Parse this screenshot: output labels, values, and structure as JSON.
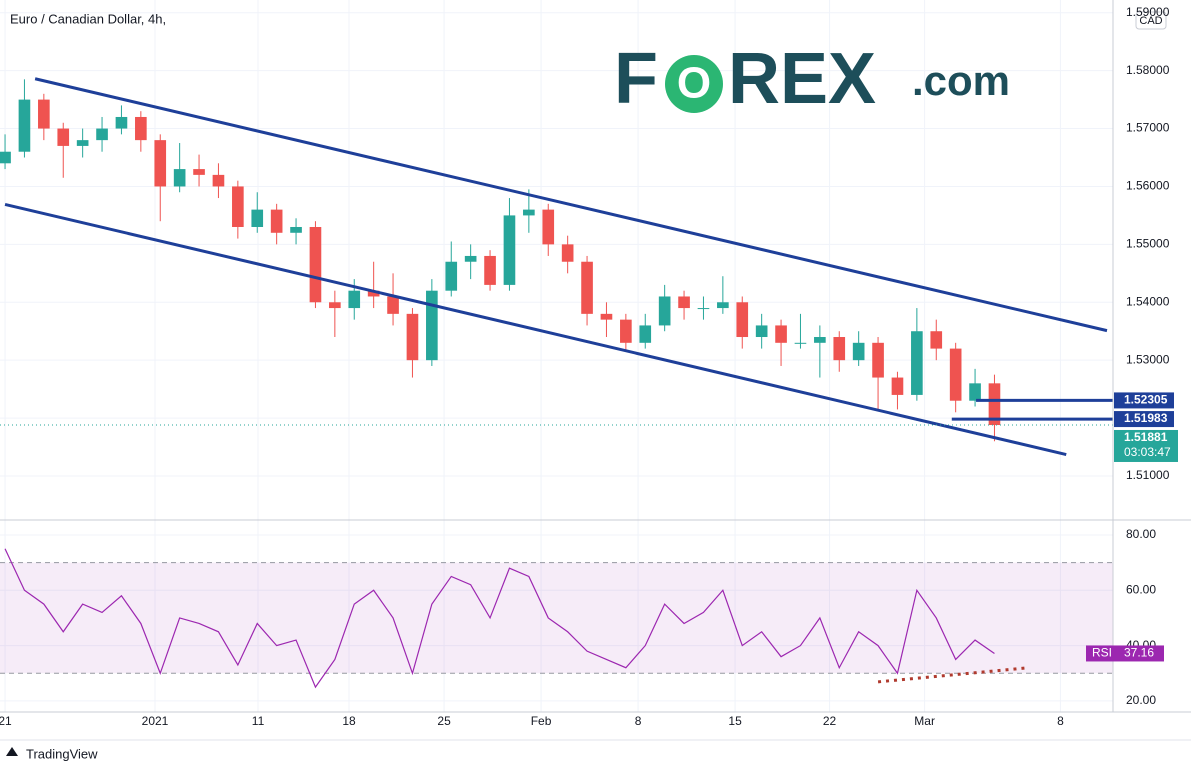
{
  "chart_data": {
    "type": "candlestick",
    "title": "Euro / Canadian Dollar, 4h,",
    "currency": "CAD",
    "logo": [
      "F",
      "O",
      "REX",
      ".com"
    ],
    "footer": "TradingView",
    "up_color": "#26a69a",
    "down_color": "#ef5350",
    "grid": true,
    "xlim": [
      -0.26,
      57.11
    ],
    "ylim": [
      1.5024,
      1.5922
    ],
    "xticks": [
      {
        "value": 0,
        "label": "21"
      },
      {
        "value": 7.73,
        "label": "2021"
      },
      {
        "value": 13.04,
        "label": "11"
      },
      {
        "value": 17.73,
        "label": "18"
      },
      {
        "value": 22.63,
        "label": "25"
      },
      {
        "value": 27.63,
        "label": "Feb"
      },
      {
        "value": 32.63,
        "label": "8"
      },
      {
        "value": 37.63,
        "label": "15"
      },
      {
        "value": 42.5,
        "label": "22"
      },
      {
        "value": 47.4,
        "label": "Mar"
      },
      {
        "value": 54.4,
        "label": "8"
      }
    ],
    "yticks": [
      {
        "value": 1.51,
        "label": "1.51000"
      },
      {
        "value": 1.52,
        "label": "1.52000"
      },
      {
        "value": 1.53,
        "label": "1.53000"
      },
      {
        "value": 1.54,
        "label": "1.54000"
      },
      {
        "value": 1.55,
        "label": "1.55000"
      },
      {
        "value": 1.56,
        "label": "1.56000"
      },
      {
        "value": 1.57,
        "label": "1.57000"
      },
      {
        "value": 1.58,
        "label": "1.58000"
      },
      {
        "value": 1.59,
        "label": "1.59000"
      }
    ],
    "x": [
      0,
      1,
      2,
      3,
      4,
      5,
      6,
      7,
      8,
      9,
      10,
      11,
      12,
      13,
      14,
      15,
      16,
      17,
      18,
      19,
      20,
      21,
      22,
      23,
      24,
      25,
      26,
      27,
      28,
      29,
      30,
      31,
      32,
      33,
      34,
      35,
      36,
      37,
      38,
      39,
      40,
      41,
      42,
      43,
      44,
      45,
      46,
      47,
      48,
      49,
      50,
      51
    ],
    "candles": [
      [
        1.564,
        1.569,
        1.563,
        1.566
      ],
      [
        1.566,
        1.5785,
        1.565,
        1.575
      ],
      [
        1.575,
        1.576,
        1.568,
        1.57
      ],
      [
        1.57,
        1.571,
        1.5615,
        1.567
      ],
      [
        1.567,
        1.57,
        1.565,
        1.568
      ],
      [
        1.568,
        1.572,
        1.566,
        1.57
      ],
      [
        1.57,
        1.574,
        1.569,
        1.572
      ],
      [
        1.572,
        1.573,
        1.566,
        1.568
      ],
      [
        1.568,
        1.569,
        1.554,
        1.56
      ],
      [
        1.56,
        1.5675,
        1.559,
        1.563
      ],
      [
        1.563,
        1.5655,
        1.56,
        1.562
      ],
      [
        1.562,
        1.564,
        1.558,
        1.56
      ],
      [
        1.56,
        1.561,
        1.551,
        1.553
      ],
      [
        1.553,
        1.559,
        1.552,
        1.556
      ],
      [
        1.556,
        1.557,
        1.55,
        1.552
      ],
      [
        1.552,
        1.5545,
        1.55,
        1.553
      ],
      [
        1.553,
        1.554,
        1.539,
        1.54
      ],
      [
        1.54,
        1.542,
        1.534,
        1.539
      ],
      [
        1.539,
        1.544,
        1.537,
        1.542
      ],
      [
        1.542,
        1.547,
        1.539,
        1.541
      ],
      [
        1.541,
        1.545,
        1.536,
        1.538
      ],
      [
        1.538,
        1.539,
        1.527,
        1.53
      ],
      [
        1.53,
        1.544,
        1.529,
        1.542
      ],
      [
        1.542,
        1.5505,
        1.541,
        1.547
      ],
      [
        1.547,
        1.55,
        1.544,
        1.548
      ],
      [
        1.548,
        1.549,
        1.542,
        1.543
      ],
      [
        1.543,
        1.558,
        1.542,
        1.555
      ],
      [
        1.555,
        1.5595,
        1.552,
        1.556
      ],
      [
        1.556,
        1.557,
        1.548,
        1.55
      ],
      [
        1.55,
        1.5515,
        1.545,
        1.547
      ],
      [
        1.547,
        1.548,
        1.536,
        1.538
      ],
      [
        1.538,
        1.54,
        1.534,
        1.537
      ],
      [
        1.537,
        1.538,
        1.5315,
        1.533
      ],
      [
        1.533,
        1.538,
        1.532,
        1.536
      ],
      [
        1.536,
        1.543,
        1.535,
        1.541
      ],
      [
        1.541,
        1.542,
        1.537,
        1.539
      ],
      [
        1.539,
        1.541,
        1.537,
        1.539
      ],
      [
        1.539,
        1.5445,
        1.538,
        1.54
      ],
      [
        1.54,
        1.541,
        1.532,
        1.534
      ],
      [
        1.534,
        1.538,
        1.532,
        1.536
      ],
      [
        1.536,
        1.537,
        1.529,
        1.533
      ],
      [
        1.533,
        1.538,
        1.532,
        1.533
      ],
      [
        1.533,
        1.536,
        1.527,
        1.534
      ],
      [
        1.534,
        1.535,
        1.528,
        1.53
      ],
      [
        1.53,
        1.535,
        1.529,
        1.533
      ],
      [
        1.533,
        1.534,
        1.5215,
        1.527
      ],
      [
        1.527,
        1.528,
        1.5215,
        1.524
      ],
      [
        1.524,
        1.539,
        1.523,
        1.535
      ],
      [
        1.535,
        1.537,
        1.53,
        1.532
      ],
      [
        1.532,
        1.533,
        1.521,
        1.523
      ],
      [
        1.523,
        1.5285,
        1.522,
        1.526
      ],
      [
        1.526,
        1.5275,
        1.516,
        1.5188
      ]
    ],
    "trendlines": {
      "color": "#1e3f99",
      "lines": [
        {
          "x": [
            1.55,
            56.8
          ],
          "y": [
            1.5786,
            1.5351
          ]
        },
        {
          "x": [
            0,
            54.7
          ],
          "y": [
            1.5569,
            1.5137
          ]
        }
      ]
    },
    "levels": {
      "color": "#1e3f99",
      "items": [
        {
          "x": 50.05,
          "y": 1.52305
        },
        {
          "x": 48.8,
          "y": 1.51983
        }
      ]
    },
    "last": {
      "value": 1.51881,
      "countdown": "03:03:47"
    },
    "rsi": {
      "name": "RSI",
      "color": "#9c27b0",
      "ylim": [
        16.0,
        85.4
      ],
      "yticks": [
        {
          "value": 20,
          "label": "20.00"
        },
        {
          "value": 40,
          "label": "40.00"
        },
        {
          "value": 60,
          "label": "60.00"
        },
        {
          "value": 80,
          "label": "80.00"
        }
      ],
      "bands": [
        30,
        70
      ],
      "values": [
        75,
        60,
        55,
        45,
        55,
        52,
        58,
        48,
        30,
        50,
        48,
        45,
        33,
        48,
        40,
        42,
        25,
        35,
        55,
        60,
        50,
        30,
        55,
        65,
        62,
        50,
        68,
        65,
        50,
        45,
        38,
        35,
        32,
        40,
        55,
        48,
        52,
        60,
        40,
        45,
        36,
        40,
        50,
        32,
        45,
        40,
        30,
        60,
        50,
        35,
        42,
        37.16
      ],
      "divergence": {
        "color": "#b03a2e",
        "x": [
          45,
          52.6
        ],
        "y": [
          26.9,
          31.9
        ]
      }
    }
  }
}
